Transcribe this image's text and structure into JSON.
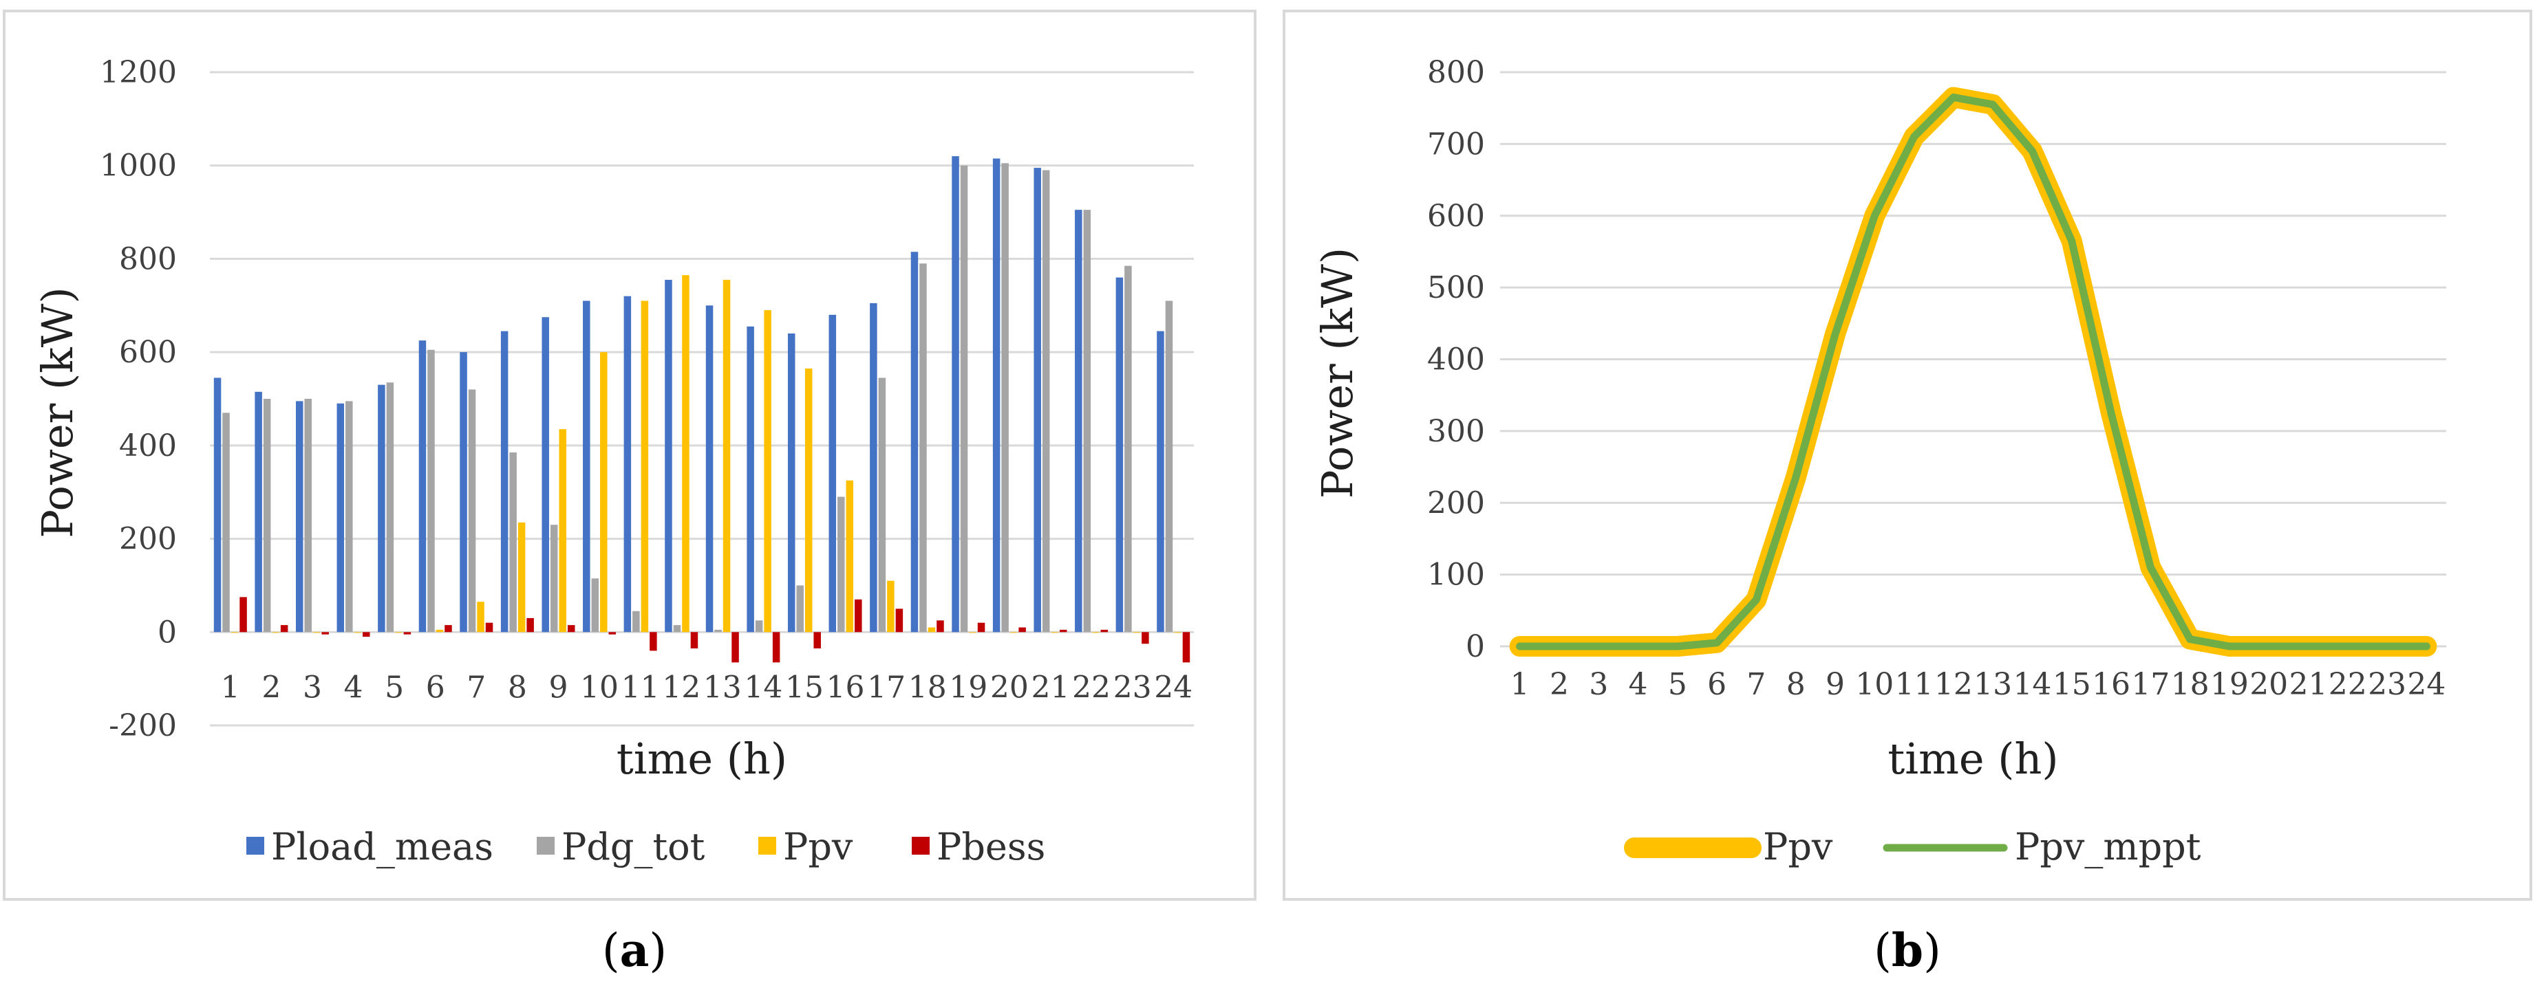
{
  "chart_data": [
    {
      "type": "bar",
      "panel_label": "a",
      "xlabel": "time (h)",
      "ylabel": "Power (kW)",
      "ylim": [
        -200,
        1200
      ],
      "yticks": [
        -200,
        0,
        200,
        400,
        600,
        800,
        1000,
        1200
      ],
      "grid": true,
      "legend_position": "bottom",
      "categories": [
        "1",
        "2",
        "3",
        "4",
        "5",
        "6",
        "7",
        "8",
        "9",
        "10",
        "11",
        "12",
        "13",
        "14",
        "15",
        "16",
        "17",
        "18",
        "19",
        "20",
        "21",
        "22",
        "23",
        "24"
      ],
      "series": [
        {
          "name": "Pload_meas",
          "color": "#4472C4",
          "values": [
            545,
            515,
            495,
            490,
            530,
            625,
            600,
            645,
            675,
            710,
            720,
            755,
            700,
            655,
            640,
            680,
            705,
            815,
            1020,
            1015,
            995,
            905,
            760,
            645
          ]
        },
        {
          "name": "Pdg_tot",
          "color": "#A5A5A5",
          "values": [
            470,
            500,
            500,
            495,
            535,
            605,
            520,
            385,
            230,
            115,
            45,
            15,
            5,
            25,
            100,
            290,
            545,
            790,
            1000,
            1005,
            990,
            905,
            785,
            710
          ]
        },
        {
          "name": "Ppv",
          "color": "#FFC000",
          "values": [
            0,
            0,
            0,
            0,
            0,
            5,
            65,
            235,
            435,
            600,
            710,
            765,
            755,
            690,
            565,
            325,
            110,
            10,
            0,
            0,
            0,
            0,
            0,
            0
          ]
        },
        {
          "name": "Pbess",
          "color": "#C00000",
          "values": [
            75,
            15,
            -5,
            -10,
            -5,
            15,
            20,
            30,
            15,
            -5,
            -40,
            -35,
            -65,
            -65,
            -35,
            70,
            50,
            25,
            20,
            10,
            5,
            5,
            -25,
            -65
          ]
        }
      ]
    },
    {
      "type": "line",
      "panel_label": "b",
      "xlabel": "time (h)",
      "ylabel": "Power (kW)",
      "ylim": [
        0,
        800
      ],
      "yticks": [
        0,
        100,
        200,
        300,
        400,
        500,
        600,
        700,
        800
      ],
      "grid": true,
      "legend_position": "bottom",
      "categories": [
        "1",
        "2",
        "3",
        "4",
        "5",
        "6",
        "7",
        "8",
        "9",
        "10",
        "11",
        "12",
        "13",
        "14",
        "15",
        "16",
        "17",
        "18",
        "19",
        "20",
        "21",
        "22",
        "23",
        "24"
      ],
      "series": [
        {
          "name": "Ppv",
          "color": "#FFC000",
          "values": [
            0,
            0,
            0,
            0,
            0,
            5,
            65,
            235,
            435,
            600,
            710,
            765,
            755,
            690,
            565,
            325,
            110,
            10,
            0,
            0,
            0,
            0,
            0,
            0
          ]
        },
        {
          "name": "Ppv_mppt",
          "color": "#70AD47",
          "values": [
            0,
            0,
            0,
            0,
            0,
            5,
            65,
            235,
            435,
            600,
            710,
            765,
            755,
            690,
            565,
            325,
            110,
            10,
            0,
            0,
            0,
            0,
            0,
            0
          ]
        }
      ]
    }
  ]
}
